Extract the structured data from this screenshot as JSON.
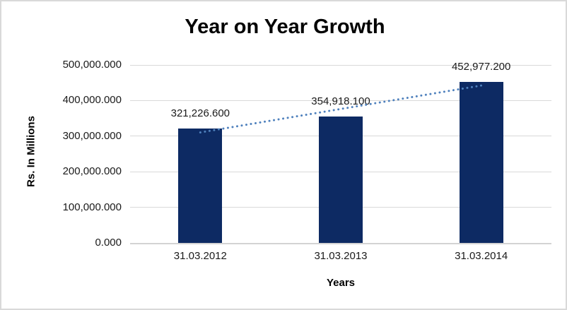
{
  "frame": {
    "background": "#ffffff",
    "border_color": "#d9d9d9"
  },
  "chart_data": {
    "type": "bar",
    "title": "Year on Year Growth",
    "xlabel": "Years",
    "ylabel": "Rs. In Millions",
    "categories": [
      "31.03.2012",
      "31.03.2013",
      "31.03.2014"
    ],
    "values": [
      321226.6,
      354918.1,
      452977.2
    ],
    "data_labels": [
      "321,226.600",
      "354,918.100",
      "452,977.200"
    ],
    "ylim": [
      0,
      500000
    ],
    "y_tick_values": [
      0,
      100000,
      200000,
      300000,
      400000,
      500000
    ],
    "y_tick_labels": [
      "0.000",
      "100,000.000",
      "200,000.000",
      "300,000.000",
      "400,000.000",
      "500,000.000"
    ],
    "grid": "horizontal",
    "legend": "none",
    "bar_color": "#0d2a63",
    "gridline_color": "#d9d9d9",
    "axis_line_color": "#d3d3d3",
    "trendline": {
      "type": "linear",
      "style": "dotted",
      "color": "#4f81bd"
    }
  }
}
